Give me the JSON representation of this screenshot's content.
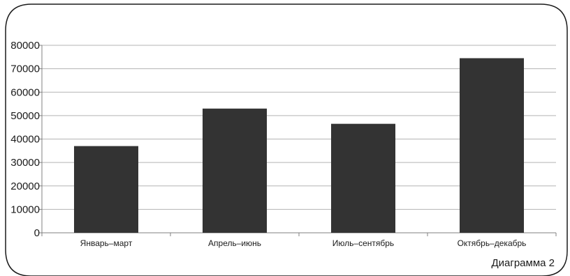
{
  "caption": "Диаграмма 2",
  "colors": {
    "bar": "#333333",
    "grid": "#b3b3b3",
    "axis": "#808080",
    "frame": "#1a1a1a"
  },
  "chart_data": {
    "type": "bar",
    "categories": [
      "Январь–март",
      "Апрель–июнь",
      "Июль–сентябрь",
      "Октябрь–декабрь"
    ],
    "values": [
      37000,
      53000,
      46500,
      74500
    ],
    "title": "",
    "xlabel": "",
    "ylabel": "",
    "ylim": [
      0,
      80000
    ],
    "yticks": [
      "0",
      "10000",
      "20000",
      "30000",
      "40000",
      "50000",
      "60000",
      "70000",
      "80000"
    ],
    "grid": true,
    "legend": "none"
  }
}
